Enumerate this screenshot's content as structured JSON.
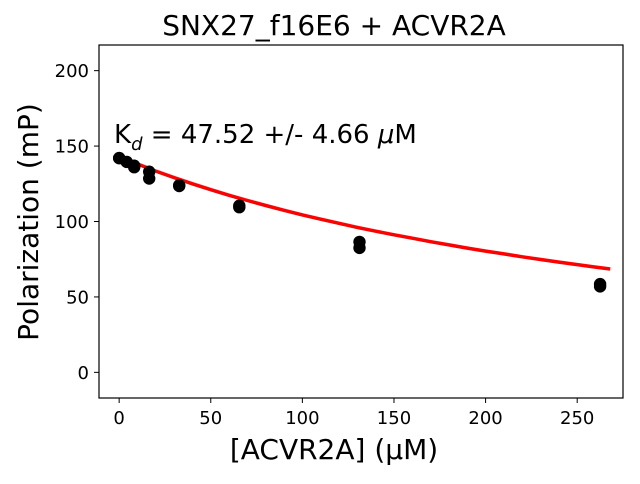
{
  "chart_data": {
    "type": "scatter",
    "title": "SNX27_f16E6 + ACVR2A",
    "xlabel": "[ACVR2A] (μM)",
    "ylabel": "Polarization (mP)",
    "xlim": [
      -11,
      275
    ],
    "ylim": [
      -17,
      217
    ],
    "xticks": [
      0,
      50,
      100,
      150,
      200,
      250
    ],
    "yticks": [
      0,
      50,
      100,
      150,
      200
    ],
    "grid": false,
    "annotation": {
      "k_main": "K",
      "k_sub": "d",
      "rest": " = 47.52 +/- 4.66 ",
      "mu": "μ",
      "unit": "M"
    },
    "points": [
      {
        "x": 0,
        "y": 142
      },
      {
        "x": 0,
        "y": 142
      },
      {
        "x": 4.1,
        "y": 139.5
      },
      {
        "x": 8.2,
        "y": 137
      },
      {
        "x": 8.2,
        "y": 136
      },
      {
        "x": 16.4,
        "y": 133
      },
      {
        "x": 16.4,
        "y": 128.5
      },
      {
        "x": 32.8,
        "y": 124
      },
      {
        "x": 32.8,
        "y": 123.5
      },
      {
        "x": 65.6,
        "y": 110.5
      },
      {
        "x": 65.6,
        "y": 109.5
      },
      {
        "x": 131.2,
        "y": 86.5
      },
      {
        "x": 131.2,
        "y": 82.5
      },
      {
        "x": 262.5,
        "y": 58.5
      },
      {
        "x": 262.5,
        "y": 57
      }
    ],
    "fit": {
      "x": [
        0,
        10,
        20,
        30,
        40,
        50,
        60,
        70,
        80,
        90,
        100,
        110,
        120,
        130,
        140,
        150,
        160,
        170,
        180,
        190,
        200,
        210,
        220,
        230,
        240,
        250,
        260,
        268
      ],
      "y": [
        143,
        138.1,
        133.4,
        129.1,
        125.0,
        121.1,
        117.4,
        113.9,
        110.6,
        107.4,
        104.4,
        101.5,
        98.8,
        96.1,
        93.6,
        91.2,
        88.9,
        86.6,
        84.5,
        82.4,
        80.4,
        78.5,
        76.6,
        74.8,
        73.1,
        71.4,
        69.8,
        68.5
      ]
    },
    "colors": {
      "fit": "#ff0000",
      "points": "#000000",
      "axes": "#000000"
    }
  }
}
